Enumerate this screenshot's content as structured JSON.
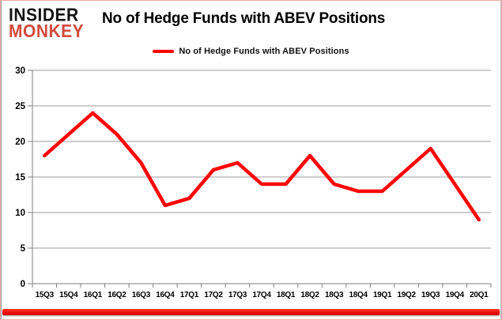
{
  "header": {
    "logo_line1": "INSIDER",
    "logo_line2": "MONKEY",
    "title": "No of Hedge Funds with ABEV Positions"
  },
  "legend": {
    "label": "No of Hedge Funds with ABEV Positions"
  },
  "colors": {
    "line": "#ff0000",
    "logo_accent": "#d14b3d",
    "gridline": "#9d9d9d",
    "axis": "#7f7f7f",
    "tick_label": "#000000",
    "bottom_bar_top": "#ff3b2e",
    "bottom_bar_mid": "#f10d02",
    "bottom_bar_bottom": "#c90500"
  },
  "chart_data": {
    "type": "line",
    "title": "No of Hedge Funds with ABEV Positions",
    "categories": [
      "15Q3",
      "15Q4",
      "16Q1",
      "16Q2",
      "16Q3",
      "16Q4",
      "17Q1",
      "17Q2",
      "17Q3",
      "17Q4",
      "18Q1",
      "18Q2",
      "18Q3",
      "18Q4",
      "19Q1",
      "19Q2",
      "19Q3",
      "19Q4",
      "20Q1"
    ],
    "series": [
      {
        "name": "No of Hedge Funds with ABEV Positions",
        "values": [
          18,
          21,
          24,
          21,
          17,
          11,
          12,
          16,
          17,
          14,
          14,
          18,
          14,
          13,
          13,
          16,
          19,
          14,
          9
        ]
      }
    ],
    "ylim": [
      0,
      30
    ],
    "ytick_interval": 5,
    "grid": true,
    "legend_position": "top"
  }
}
